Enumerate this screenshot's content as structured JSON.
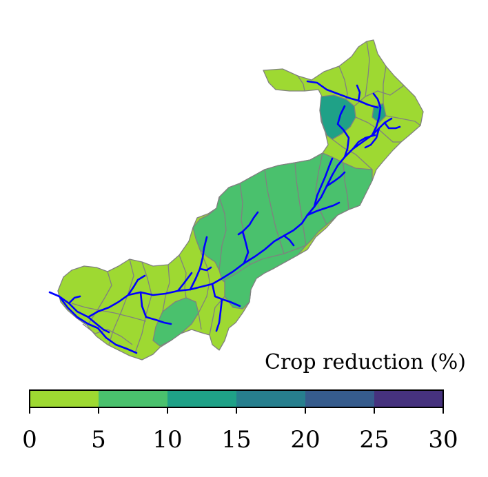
{
  "colorbar": {
    "title": "Crop reduction (%)",
    "ticks": [
      "0",
      "5",
      "10",
      "15",
      "20",
      "25",
      "30"
    ],
    "bins": [
      {
        "from": 0,
        "to": 5,
        "color": "#9ed932"
      },
      {
        "from": 5,
        "to": 10,
        "color": "#4ac16d"
      },
      {
        "from": 10,
        "to": 15,
        "color": "#1fa187"
      },
      {
        "from": 15,
        "to": 20,
        "color": "#277f8e"
      },
      {
        "from": 20,
        "to": 25,
        "color": "#365c8d"
      },
      {
        "from": 25,
        "to": 30,
        "color": "#46327e"
      }
    ]
  },
  "colors": {
    "river": "#0000ff",
    "boundary": "#808080"
  }
}
